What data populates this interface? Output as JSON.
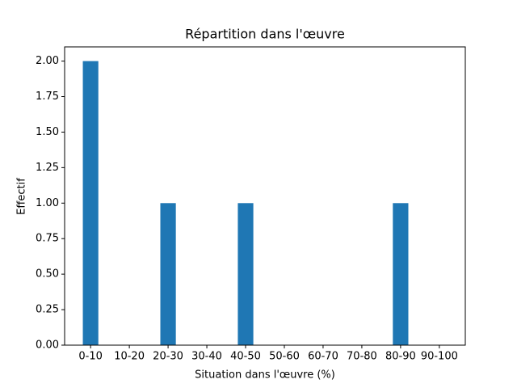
{
  "chart_data": {
    "type": "bar",
    "title": "Répartition dans l'œuvre",
    "x_label": "Situation dans l'œuvre (%)",
    "y_label": "Effectif",
    "categories": [
      "0-10",
      "10-20",
      "20-30",
      "30-40",
      "40-50",
      "50-60",
      "60-70",
      "70-80",
      "80-90",
      "90-100"
    ],
    "values": [
      2,
      0,
      1,
      0,
      1,
      0,
      0,
      0,
      1,
      0
    ],
    "color": "#1f77b4",
    "ylim": [
      0,
      2.1
    ],
    "yticks": [
      {
        "value": 0,
        "label": "0.00"
      },
      {
        "value": 0.25,
        "label": "0.25"
      },
      {
        "value": 0.5,
        "label": "0.50"
      },
      {
        "value": 0.75,
        "label": "0.75"
      },
      {
        "value": 1,
        "label": "1.00"
      },
      {
        "value": 1.25,
        "label": "1.25"
      },
      {
        "value": 1.5,
        "label": "1.50"
      },
      {
        "value": 1.75,
        "label": "1.75"
      },
      {
        "value": 2,
        "label": "2.00"
      }
    ],
    "grid": false
  }
}
